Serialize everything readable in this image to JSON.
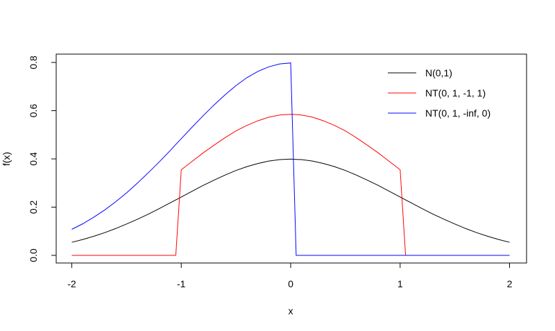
{
  "chart_data": {
    "type": "line",
    "title": "",
    "xlabel": "x",
    "ylabel": "f(x)",
    "xlim": [
      -2,
      2
    ],
    "ylim": [
      0,
      0.8
    ],
    "x_ticks": [
      "-2",
      "-1",
      "0",
      "1",
      "2"
    ],
    "y_ticks": [
      "0.0",
      "0.2",
      "0.4",
      "0.6",
      "0.8"
    ],
    "grid": false,
    "legend_position": "top-right",
    "x": [
      -2.0,
      -1.9,
      -1.8,
      -1.7,
      -1.6,
      -1.5,
      -1.4,
      -1.3,
      -1.2,
      -1.1,
      -1.05,
      -1.0,
      -0.9,
      -0.8,
      -0.7,
      -0.6,
      -0.5,
      -0.4,
      -0.3,
      -0.2,
      -0.1,
      0.0,
      0.05,
      0.1,
      0.2,
      0.3,
      0.4,
      0.5,
      0.6,
      0.7,
      0.8,
      0.9,
      1.0,
      1.05,
      1.1,
      1.2,
      1.3,
      1.4,
      1.5,
      1.6,
      1.7,
      1.8,
      1.9,
      2.0
    ],
    "series": [
      {
        "name": "N(0,1)",
        "color": "#000000",
        "values": [
          0.054,
          0.066,
          0.079,
          0.094,
          0.111,
          0.13,
          0.15,
          0.171,
          0.194,
          0.218,
          0.23,
          0.242,
          0.266,
          0.29,
          0.312,
          0.333,
          0.352,
          0.368,
          0.381,
          0.391,
          0.397,
          0.399,
          0.398,
          0.397,
          0.391,
          0.381,
          0.368,
          0.352,
          0.333,
          0.312,
          0.29,
          0.266,
          0.242,
          0.23,
          0.218,
          0.194,
          0.171,
          0.15,
          0.13,
          0.111,
          0.094,
          0.079,
          0.066,
          0.054
        ]
      },
      {
        "name": "NT(0, 1, -1, 1)",
        "color": "#ff0000",
        "values": [
          0,
          0,
          0,
          0,
          0,
          0,
          0,
          0,
          0,
          0,
          0,
          0.355,
          0.39,
          0.425,
          0.457,
          0.488,
          0.516,
          0.539,
          0.558,
          0.573,
          0.582,
          0.585,
          0.584,
          0.582,
          0.573,
          0.558,
          0.539,
          0.516,
          0.488,
          0.457,
          0.425,
          0.39,
          0.355,
          0,
          0,
          0,
          0,
          0,
          0,
          0,
          0,
          0,
          0,
          0
        ]
      },
      {
        "name": "NT(0, 1, -inf, 0)",
        "color": "#0000ff",
        "values": [
          0.108,
          0.131,
          0.158,
          0.188,
          0.222,
          0.259,
          0.3,
          0.343,
          0.388,
          0.435,
          0.46,
          0.484,
          0.532,
          0.579,
          0.624,
          0.666,
          0.704,
          0.737,
          0.763,
          0.782,
          0.794,
          0.798,
          0,
          0,
          0,
          0,
          0,
          0,
          0,
          0,
          0,
          0,
          0,
          0,
          0,
          0,
          0,
          0,
          0,
          0,
          0,
          0,
          0,
          0
        ]
      }
    ]
  }
}
